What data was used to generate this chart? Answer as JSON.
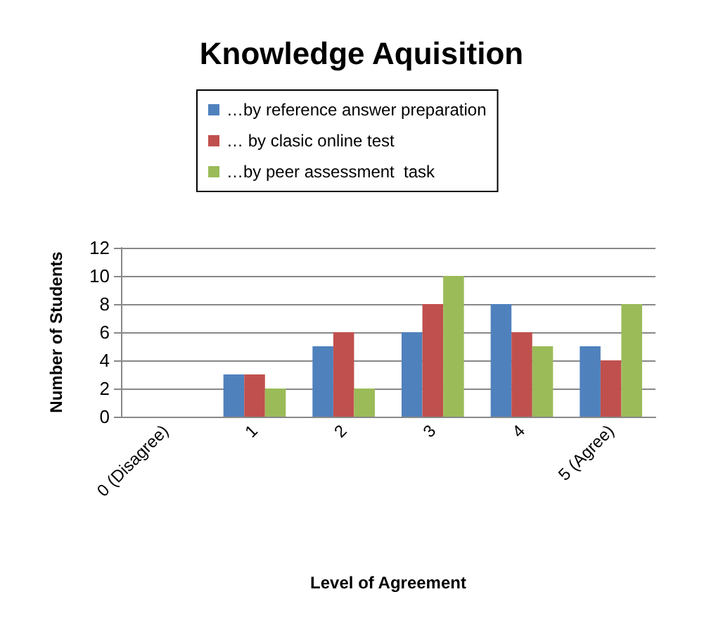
{
  "chart_data": {
    "type": "bar",
    "title": "Knowledge Aquisition",
    "xlabel": "Level of Agreement",
    "ylabel": "Number of Students",
    "categories": [
      "0 (Disagree)",
      "1",
      "2",
      "3",
      "4",
      "5 (Agree)"
    ],
    "series": [
      {
        "name": "…by reference answer preparation",
        "color": "#4f81bd",
        "values": [
          0,
          3,
          5,
          6,
          8,
          5
        ]
      },
      {
        "name": "… by clasic online test",
        "color": "#c0504d",
        "values": [
          0,
          3,
          6,
          8,
          6,
          4
        ]
      },
      {
        "name": "…by peer assessment  task",
        "color": "#9bbb59",
        "values": [
          0,
          2,
          2,
          10,
          5,
          8
        ]
      }
    ],
    "ylim": [
      0,
      12
    ],
    "yticks": [
      0,
      2,
      4,
      6,
      8,
      10,
      12
    ],
    "grid": "y",
    "legend": "top"
  }
}
